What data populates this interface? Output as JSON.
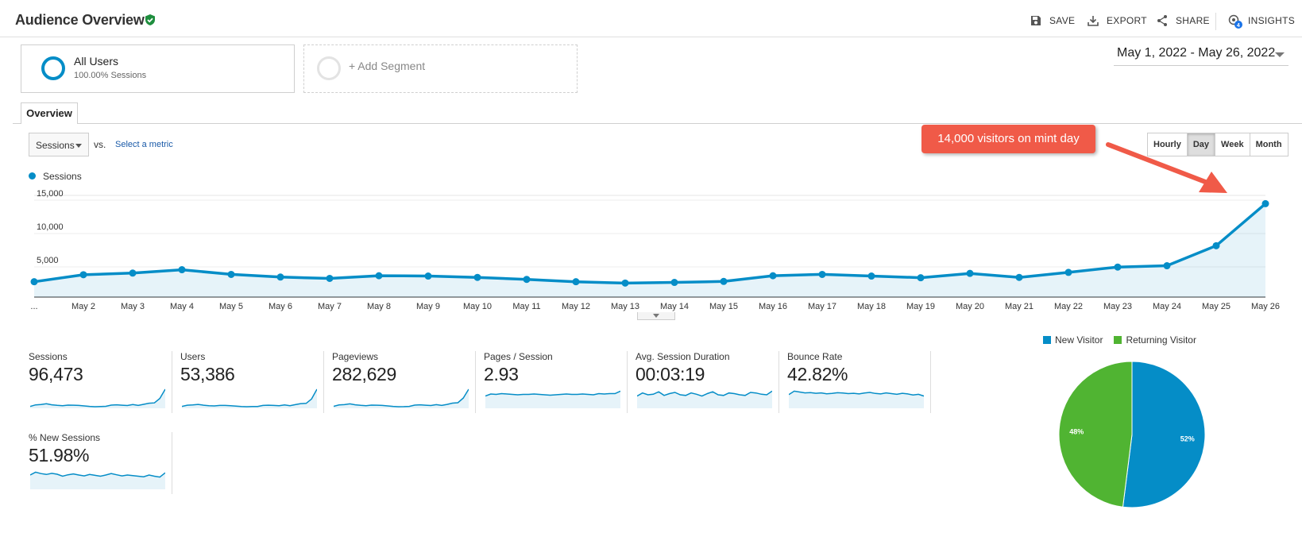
{
  "header": {
    "title": "Audience Overview",
    "actions": [
      {
        "label": "SAVE",
        "icon": "save-icon"
      },
      {
        "label": "EXPORT",
        "icon": "export-icon"
      },
      {
        "label": "SHARE",
        "icon": "share-icon"
      },
      {
        "label": "INSIGHTS",
        "icon": "insights-icon",
        "badge": "4"
      }
    ]
  },
  "segments": {
    "active": {
      "name": "All Users",
      "subtitle": "100.00% Sessions"
    },
    "add_label": "+ Add Segment"
  },
  "date_range": "May 1, 2022 - May 26, 2022",
  "tabs": [
    {
      "label": "Overview"
    }
  ],
  "metric_select": {
    "value": "Sessions",
    "vs": "vs.",
    "select_link": "Select a metric"
  },
  "periods": [
    {
      "label": "Hourly",
      "active": false
    },
    {
      "label": "Day",
      "active": true
    },
    {
      "label": "Week",
      "active": false
    },
    {
      "label": "Month",
      "active": false
    }
  ],
  "annotation": {
    "text": "14,000 visitors on mint day"
  },
  "chart_data": {
    "type": "line",
    "legend": [
      "Sessions"
    ],
    "series": [
      {
        "name": "Sessions",
        "color": "#058dc7",
        "values": [
          2300,
          3350,
          3600,
          4100,
          3400,
          3000,
          2800,
          3200,
          3150,
          2950,
          2650,
          2300,
          2100,
          2200,
          2350,
          3200,
          3400,
          3150,
          2900,
          3550,
          2950,
          3700,
          4500,
          4700,
          7700,
          14000
        ]
      }
    ],
    "x_labels": [
      "...",
      "May 2",
      "May 3",
      "May 4",
      "May 5",
      "May 6",
      "May 7",
      "May 8",
      "May 9",
      "May 10",
      "May 11",
      "May 12",
      "May 13",
      "May 14",
      "May 15",
      "May 16",
      "May 17",
      "May 18",
      "May 19",
      "May 20",
      "May 21",
      "May 22",
      "May 23",
      "May 24",
      "May 25",
      "May 26"
    ],
    "y_ticks": [
      "5,000",
      "10,000",
      "15,000"
    ],
    "y_tick_values": [
      5000,
      10000,
      15000
    ],
    "ylim": [
      0,
      15000
    ],
    "grid": true
  },
  "stats": [
    {
      "label": "Sessions",
      "value": "96,473",
      "spark": [
        2300,
        3350,
        3600,
        4100,
        3400,
        3000,
        2800,
        3200,
        3150,
        2950,
        2650,
        2300,
        2100,
        2200,
        2350,
        3200,
        3400,
        3150,
        2900,
        3550,
        2950,
        3700,
        4500,
        4700,
        7700,
        14000
      ]
    },
    {
      "label": "Users",
      "value": "53,386",
      "spark": [
        1300,
        1800,
        1900,
        2100,
        1800,
        1600,
        1500,
        1700,
        1700,
        1600,
        1450,
        1300,
        1200,
        1250,
        1300,
        1700,
        1800,
        1700,
        1600,
        1900,
        1600,
        2000,
        2400,
        2500,
        4200,
        8000
      ]
    },
    {
      "label": "Pageviews",
      "value": "282,629",
      "spark": [
        7000,
        9500,
        10000,
        11500,
        9800,
        8800,
        8200,
        9200,
        9100,
        8600,
        7800,
        6900,
        6300,
        6500,
        6900,
        9200,
        9800,
        9100,
        8500,
        10100,
        8600,
        10500,
        12800,
        13500,
        22000,
        38000
      ]
    },
    {
      "label": "Pages / Session",
      "value": "2.93",
      "spark": [
        2.7,
        2.95,
        2.9,
        3.0,
        2.95,
        2.9,
        2.85,
        2.9,
        2.9,
        2.95,
        2.9,
        2.85,
        2.8,
        2.85,
        2.9,
        2.95,
        2.9,
        2.9,
        2.95,
        2.9,
        2.85,
        3.0,
        2.95,
        3.0,
        3.0,
        3.3
      ]
    },
    {
      "label": "Avg. Session Duration",
      "value": "00:03:19",
      "spark": [
        190,
        215,
        200,
        205,
        225,
        195,
        210,
        220,
        200,
        195,
        215,
        205,
        190,
        210,
        225,
        200,
        195,
        215,
        210,
        200,
        195,
        220,
        215,
        205,
        200,
        230
      ]
    },
    {
      "label": "Bounce Rate",
      "value": "42.82%",
      "spark": [
        42,
        44,
        43.5,
        43,
        43.2,
        42.8,
        43,
        42.5,
        42.7,
        43.1,
        42.9,
        42.6,
        42.8,
        42.4,
        42.9,
        43.3,
        42.7,
        42.4,
        43,
        42.6,
        42.2,
        42.8,
        42.4,
        41.8,
        42.2,
        41.2
      ]
    },
    {
      "label": "% New Sessions",
      "value": "51.98%",
      "spark": [
        52,
        53,
        52.5,
        52.2,
        52.6,
        52.3,
        51.6,
        52.1,
        52.4,
        52,
        51.7,
        52.2,
        51.9,
        51.6,
        52,
        52.5,
        52.1,
        51.7,
        52,
        51.8,
        51.6,
        51.4,
        52,
        51.6,
        51.3,
        52.8
      ]
    }
  ],
  "pie": {
    "type": "pie",
    "legend": [
      {
        "name": "New Visitor",
        "color": "#058dc7"
      },
      {
        "name": "Returning Visitor",
        "color": "#50b432"
      }
    ],
    "values": [
      52,
      48
    ],
    "labels": [
      "52%",
      "48%"
    ]
  }
}
